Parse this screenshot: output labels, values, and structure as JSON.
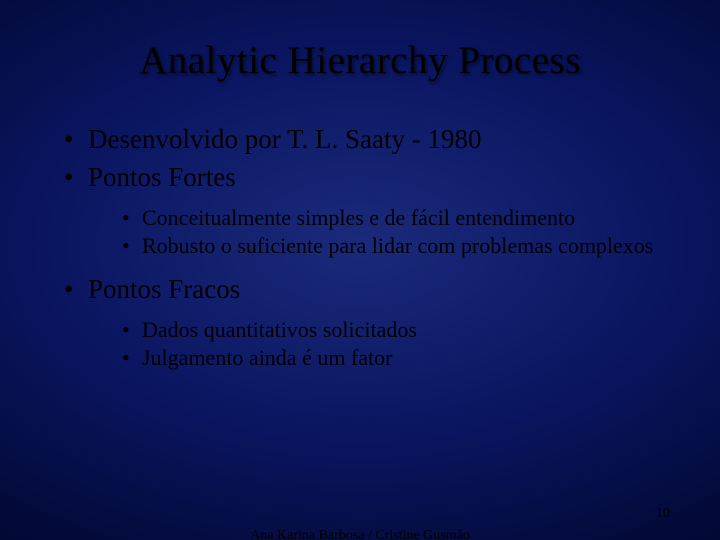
{
  "title": "Analytic Hierarchy Process",
  "bullets": {
    "b1": "Desenvolvido por T. L. Saaty - 1980",
    "b2": "Pontos Fortes",
    "b2_sub": {
      "s1": "Conceitualmente simples e de fácil entendimento",
      "s2": "Robusto o suficiente para lidar com problemas complexos"
    },
    "b3": "Pontos Fracos",
    "b3_sub": {
      "s1": "Dados quantitativos solicitados",
      "s2": "Julgamento ainda é um fator"
    }
  },
  "footer": {
    "authors": "Ana Karina Barbosa / Cristine Gusmão",
    "page": "10"
  }
}
